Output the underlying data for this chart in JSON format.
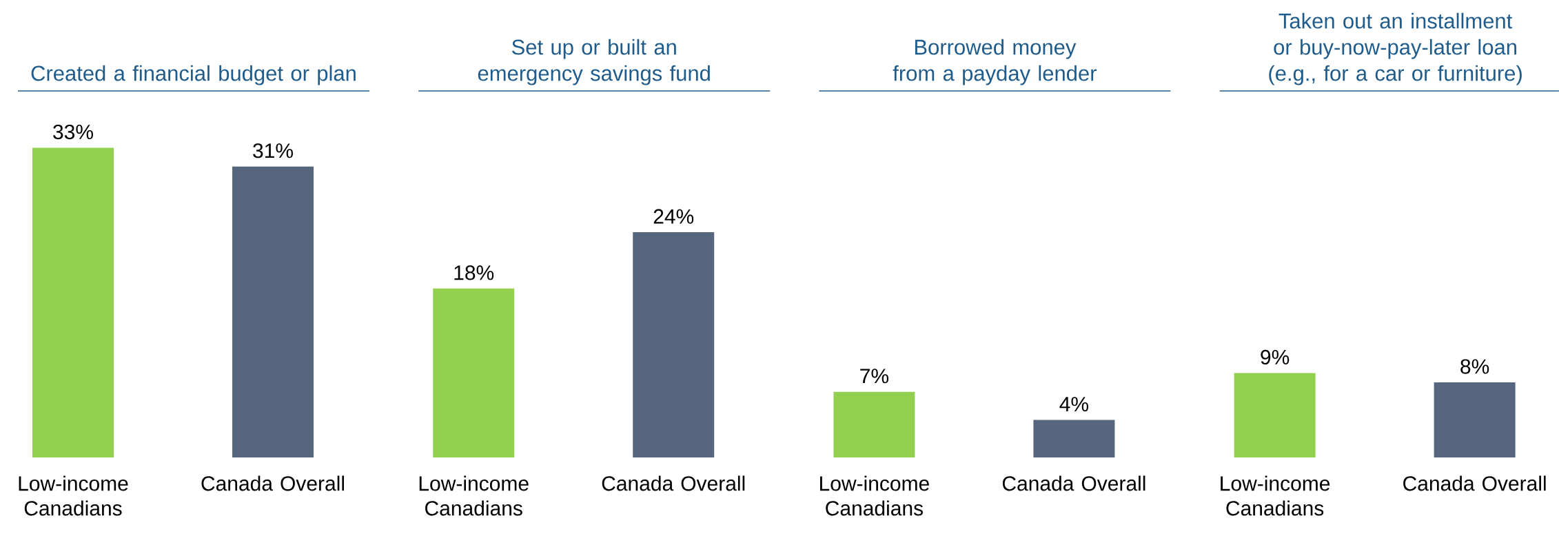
{
  "chart_data": [
    {
      "type": "bar",
      "title": "Created a financial budget or plan",
      "categories": [
        "Low-income Canadians",
        "Canada Overall"
      ],
      "values": [
        33,
        31
      ],
      "colors": [
        "#92d050",
        "#56667f"
      ],
      "value_labels": [
        "33%",
        "31%"
      ]
    },
    {
      "type": "bar",
      "title": "Set up or built an emergency savings fund",
      "categories": [
        "Low-income Canadians",
        "Canada Overall"
      ],
      "values": [
        18,
        24
      ],
      "colors": [
        "#92d050",
        "#56667f"
      ],
      "value_labels": [
        "18%",
        "24%"
      ]
    },
    {
      "type": "bar",
      "title": "Borrowed money from a payday lender",
      "categories": [
        "Low-income Canadians",
        "Canada Overall"
      ],
      "values": [
        7,
        4
      ],
      "colors": [
        "#92d050",
        "#56667f"
      ],
      "value_labels": [
        "7%",
        "4%"
      ]
    },
    {
      "type": "bar",
      "title": "Taken out an installment or buy-now-pay-later loan (e.g., for a car or furniture)",
      "categories": [
        "Low-income Canadians",
        "Canada Overall"
      ],
      "values": [
        9,
        8
      ],
      "colors": [
        "#92d050",
        "#56667f"
      ],
      "value_labels": [
        "9%",
        "8%"
      ]
    }
  ]
}
